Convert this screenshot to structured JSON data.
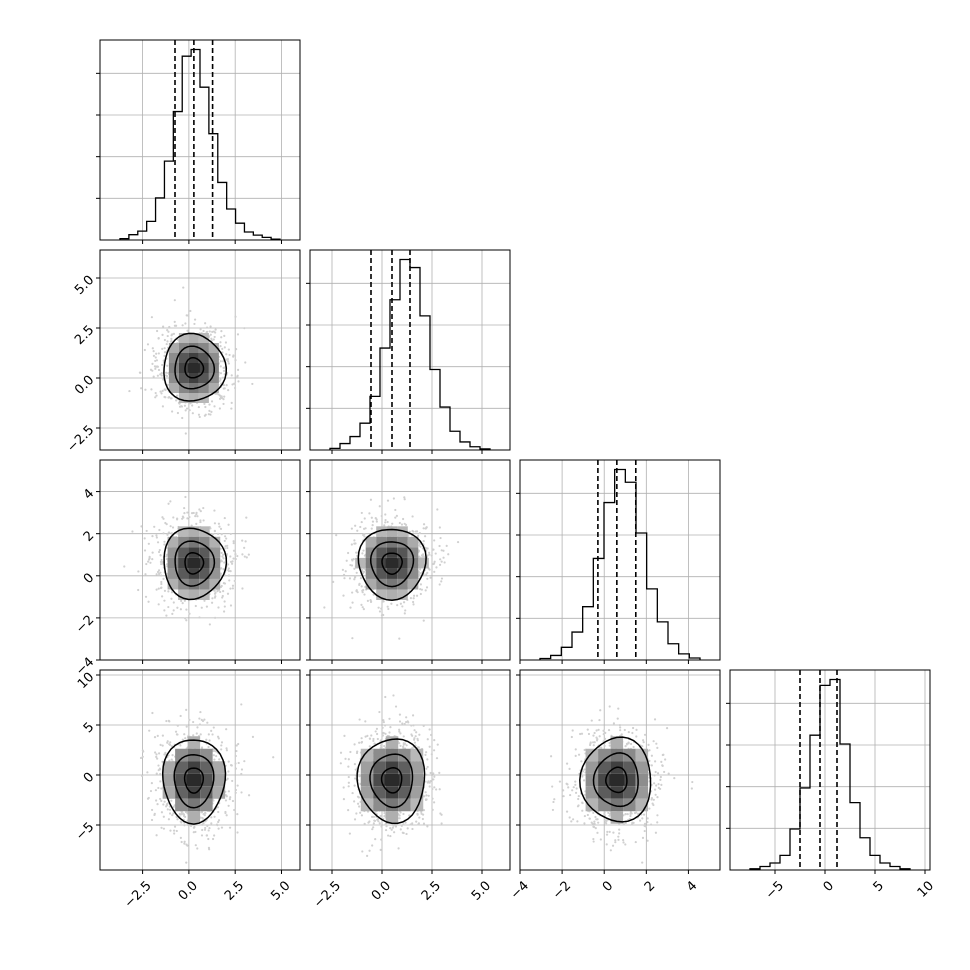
{
  "chart_data": {
    "type": "corner",
    "params": [
      {
        "hist_range": [
          -4.8,
          6.0
        ],
        "hist_counts": [
          0.3,
          1.2,
          2.0,
          4.2,
          9.5,
          17.8,
          29.0,
          41.5,
          43.0,
          34.5,
          24.0,
          13.0,
          7.0,
          3.8,
          1.8,
          1.1,
          0.6,
          0.2
        ],
        "quantiles": [
          -0.75,
          0.27,
          1.28
        ],
        "ticks": [
          -2.5,
          0.0,
          2.5,
          5.0
        ],
        "tick_labels": [
          "−2.5",
          "0.0",
          "2.5",
          "5.0"
        ]
      },
      {
        "range": [
          -3.6,
          6.4
        ],
        "hist_counts": [
          0.3,
          1.2,
          2.5,
          5.0,
          10.0,
          19.0,
          28.0,
          35.5,
          34.0,
          25.0,
          15.0,
          8.0,
          3.5,
          1.5,
          0.6,
          0.2
        ],
        "quantiles": [
          -0.55,
          0.5,
          1.4
        ],
        "ticks": [
          -2.5,
          0.0,
          2.5,
          5.0
        ],
        "tick_labels": [
          "−2.5",
          "0.0",
          "2.5",
          "5.0"
        ]
      },
      {
        "range": [
          -4.0,
          5.5
        ],
        "hist_counts": [
          0.3,
          0.9,
          2.5,
          5.5,
          10.5,
          20.0,
          31.0,
          37.5,
          35.0,
          25.0,
          14.0,
          7.5,
          3.2,
          1.2,
          0.4
        ],
        "quantiles": [
          -0.3,
          0.6,
          1.5
        ],
        "ticks": [
          -4,
          -2,
          0,
          2,
          4
        ],
        "tick_labels": [
          "−4",
          "−2",
          "0",
          "2",
          "4"
        ]
      },
      {
        "range": [
          -9.5,
          10.5
        ],
        "hist_counts": [
          0.2,
          0.6,
          1.2,
          2.5,
          7.0,
          14.0,
          23.0,
          31.5,
          32.5,
          21.5,
          11.5,
          5.5,
          2.5,
          1.2,
          0.6,
          0.2
        ],
        "quantiles": [
          -2.5,
          -0.5,
          1.2
        ],
        "ticks": [
          -5,
          0,
          5,
          10
        ],
        "tick_labels": [
          "−5",
          "0",
          "5",
          "10"
        ]
      }
    ],
    "pair_means": [
      0.27,
      0.5,
      0.6,
      -0.5
    ],
    "pair_sigmas": [
      1.0,
      1.0,
      1.0,
      2.5
    ],
    "contour_levels": [
      0.5,
      1.0,
      1.5
    ],
    "grid": true,
    "colors": {
      "line": "#000000",
      "grid": "#b0b0b0",
      "scatter": "#d0d0d0",
      "density_dark": "#2a2a2a"
    }
  }
}
